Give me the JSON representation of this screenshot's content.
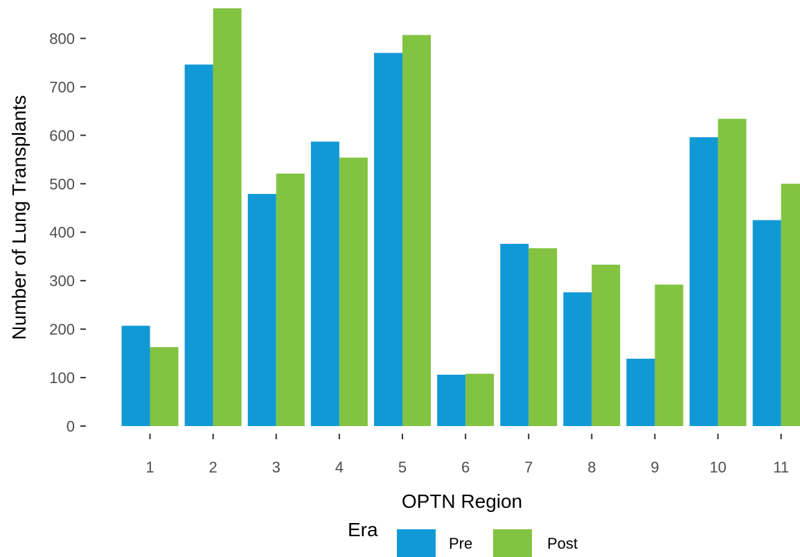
{
  "chart_data": {
    "type": "bar",
    "title": "",
    "xlabel": "OPTN Region",
    "ylabel": "Number of Lung Transplants",
    "categories": [
      "1",
      "2",
      "3",
      "4",
      "5",
      "6",
      "7",
      "8",
      "9",
      "10",
      "11"
    ],
    "series": [
      {
        "name": "Pre",
        "color": "#1199D6",
        "values": [
          207,
          746,
          479,
          587,
          770,
          106,
          376,
          276,
          139,
          596,
          425
        ]
      },
      {
        "name": "Post",
        "color": "#82C341",
        "values": [
          163,
          862,
          521,
          554,
          807,
          108,
          367,
          333,
          292,
          634,
          500
        ]
      }
    ],
    "ylim": [
      0,
      862
    ],
    "yticks": [
      0,
      100,
      200,
      300,
      400,
      500,
      600,
      700,
      800
    ],
    "grid": false,
    "legend": {
      "title": "Era",
      "position": "bottom"
    }
  }
}
